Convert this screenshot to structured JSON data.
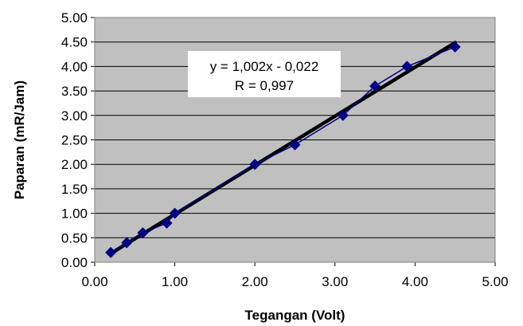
{
  "chart_data": {
    "type": "scatter",
    "xlabel": "Tegangan (Volt)",
    "ylabel": "Paparan (mR/Jam)",
    "xlim": [
      0,
      5
    ],
    "ylim": [
      0,
      5
    ],
    "x_ticks": [
      "0.00",
      "1.00",
      "2.00",
      "3.00",
      "4.00",
      "5.00"
    ],
    "y_ticks": [
      "0.00",
      "0.50",
      "1.00",
      "1.50",
      "2.00",
      "2.50",
      "3.00",
      "3.50",
      "4.00",
      "4.50",
      "5.00"
    ],
    "grid": "horizontal",
    "plot_background": "#c0c0c0",
    "series": [
      {
        "x": [
          0.2,
          0.4,
          0.6,
          0.9,
          1.0,
          2.0,
          2.5,
          3.1,
          3.5,
          3.9,
          4.5
        ],
        "y": [
          0.2,
          0.4,
          0.6,
          0.8,
          1.0,
          2.0,
          2.4,
          3.0,
          3.6,
          4.0,
          4.4
        ],
        "color": "#000080",
        "marker": "diamond"
      }
    ],
    "trendline": {
      "slope": 1.002,
      "intercept": -0.022,
      "x_range": [
        0.2,
        4.5
      ],
      "color": "#000000"
    },
    "annotation": {
      "line1": "y = 1,002x - 0,022",
      "line2": "R = 0,997"
    }
  }
}
